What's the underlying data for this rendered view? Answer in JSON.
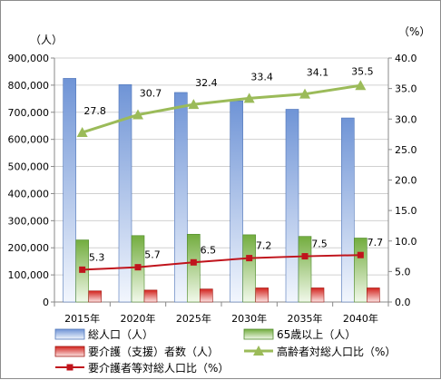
{
  "chart_data": {
    "type": "bar",
    "categories": [
      "2015年",
      "2020年",
      "2025年",
      "2030年",
      "2035年",
      "2040年"
    ],
    "y_left": {
      "unit": "（人）",
      "ylim": [
        0,
        900000
      ],
      "ticks": [
        "0",
        "100,000",
        "200,000",
        "300,000",
        "400,000",
        "500,000",
        "600,000",
        "700,000",
        "800,000",
        "900,000"
      ]
    },
    "y_right": {
      "unit": "（%）",
      "ylim": [
        0,
        40
      ],
      "ticks": [
        "0.0",
        "5.0",
        "10.0",
        "15.0",
        "20.0",
        "25.0",
        "30.0",
        "35.0",
        "40.0"
      ]
    },
    "grid": true,
    "legend_position": "bottom",
    "series": [
      {
        "name": "総人口（人）",
        "kind": "bar",
        "axis": "left",
        "color": "#7fa3dc",
        "values": [
          825000,
          802000,
          773000,
          742000,
          711000,
          679000
        ]
      },
      {
        "name": "65歳以上（人）",
        "kind": "bar",
        "axis": "left",
        "color": "#7ab648",
        "values": [
          229000,
          245000,
          250000,
          248000,
          242000,
          236000
        ]
      },
      {
        "name": "要介護（支援）者数（人）",
        "kind": "bar",
        "axis": "left",
        "color": "#d9302a",
        "values": [
          41000,
          44000,
          48000,
          52000,
          52000,
          52000
        ]
      },
      {
        "name": "高齢者対総人口比（%）",
        "kind": "line",
        "axis": "right",
        "color": "#9bbb59",
        "marker": "triangle",
        "values": [
          27.8,
          30.7,
          32.4,
          33.4,
          34.1,
          35.5
        ],
        "labels": [
          "27.8",
          "30.7",
          "32.4",
          "33.4",
          "34.1",
          "35.5"
        ]
      },
      {
        "name": "要介護者等対総人口比（%）",
        "kind": "line",
        "axis": "right",
        "color": "#c0141c",
        "marker": "square",
        "values": [
          5.3,
          5.7,
          6.5,
          7.2,
          7.5,
          7.7
        ],
        "labels": [
          "5.3",
          "5.7",
          "6.5",
          "7.2",
          "7.5",
          "7.7"
        ]
      }
    ]
  }
}
